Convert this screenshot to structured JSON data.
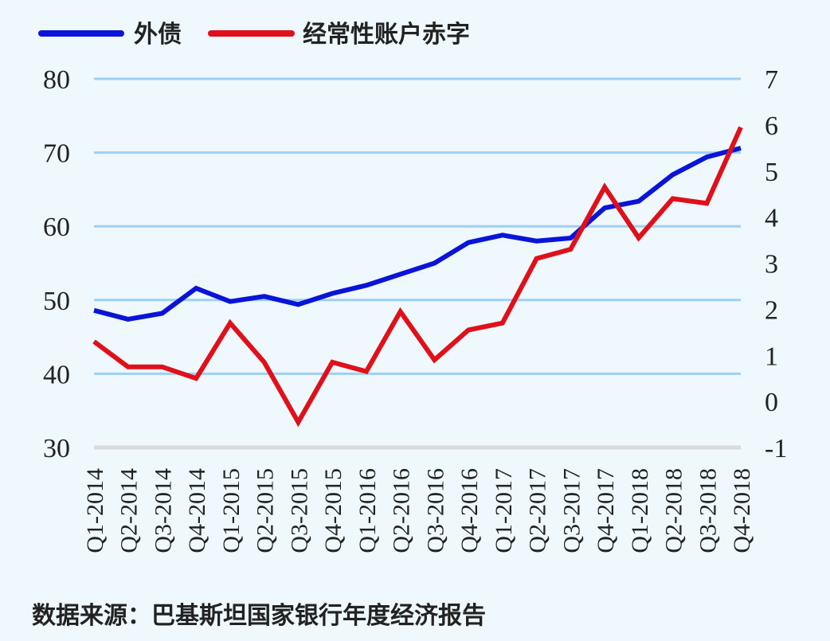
{
  "chart_data": {
    "type": "line",
    "title": "",
    "categories": [
      "Q1-2014",
      "Q2-2014",
      "Q3-2014",
      "Q4-2014",
      "Q1-2015",
      "Q2-2015",
      "Q3-2015",
      "Q4-2015",
      "Q1-2016",
      "Q2-2016",
      "Q3-2016",
      "Q4-2016",
      "Q1-2017",
      "Q2-2017",
      "Q3-2017",
      "Q4-2017",
      "Q1-2018",
      "Q2-2018",
      "Q3-2018",
      "Q4-2018"
    ],
    "series": [
      {
        "name": "外债",
        "axis": "left",
        "color": "#0a14d8",
        "values": [
          48.6,
          47.4,
          48.2,
          51.6,
          49.8,
          50.5,
          49.4,
          50.9,
          52.0,
          53.5,
          55.0,
          57.8,
          58.8,
          58.0,
          58.4,
          62.5,
          63.4,
          67.0,
          69.4,
          70.6
        ]
      },
      {
        "name": "经常性账户赤字",
        "axis": "right",
        "color": "#e0101a",
        "values": [
          1.3,
          0.75,
          0.75,
          0.5,
          1.7,
          0.85,
          -0.45,
          0.85,
          0.65,
          1.95,
          0.9,
          1.55,
          1.7,
          3.1,
          3.3,
          4.65,
          3.55,
          4.4,
          4.3,
          5.95
        ]
      }
    ],
    "y_left": {
      "ylim": [
        30,
        80
      ],
      "ticks": [
        30,
        40,
        50,
        60,
        70,
        80
      ]
    },
    "y_right": {
      "ylim": [
        -1,
        7
      ],
      "ticks": [
        -1,
        0,
        1,
        2,
        3,
        4,
        5,
        6,
        7
      ]
    },
    "grid": true,
    "legend_position": "top-left",
    "gridline_color": "#9fd0f4"
  },
  "source": "数据来源：巴基斯坦国家银行年度经济报告"
}
